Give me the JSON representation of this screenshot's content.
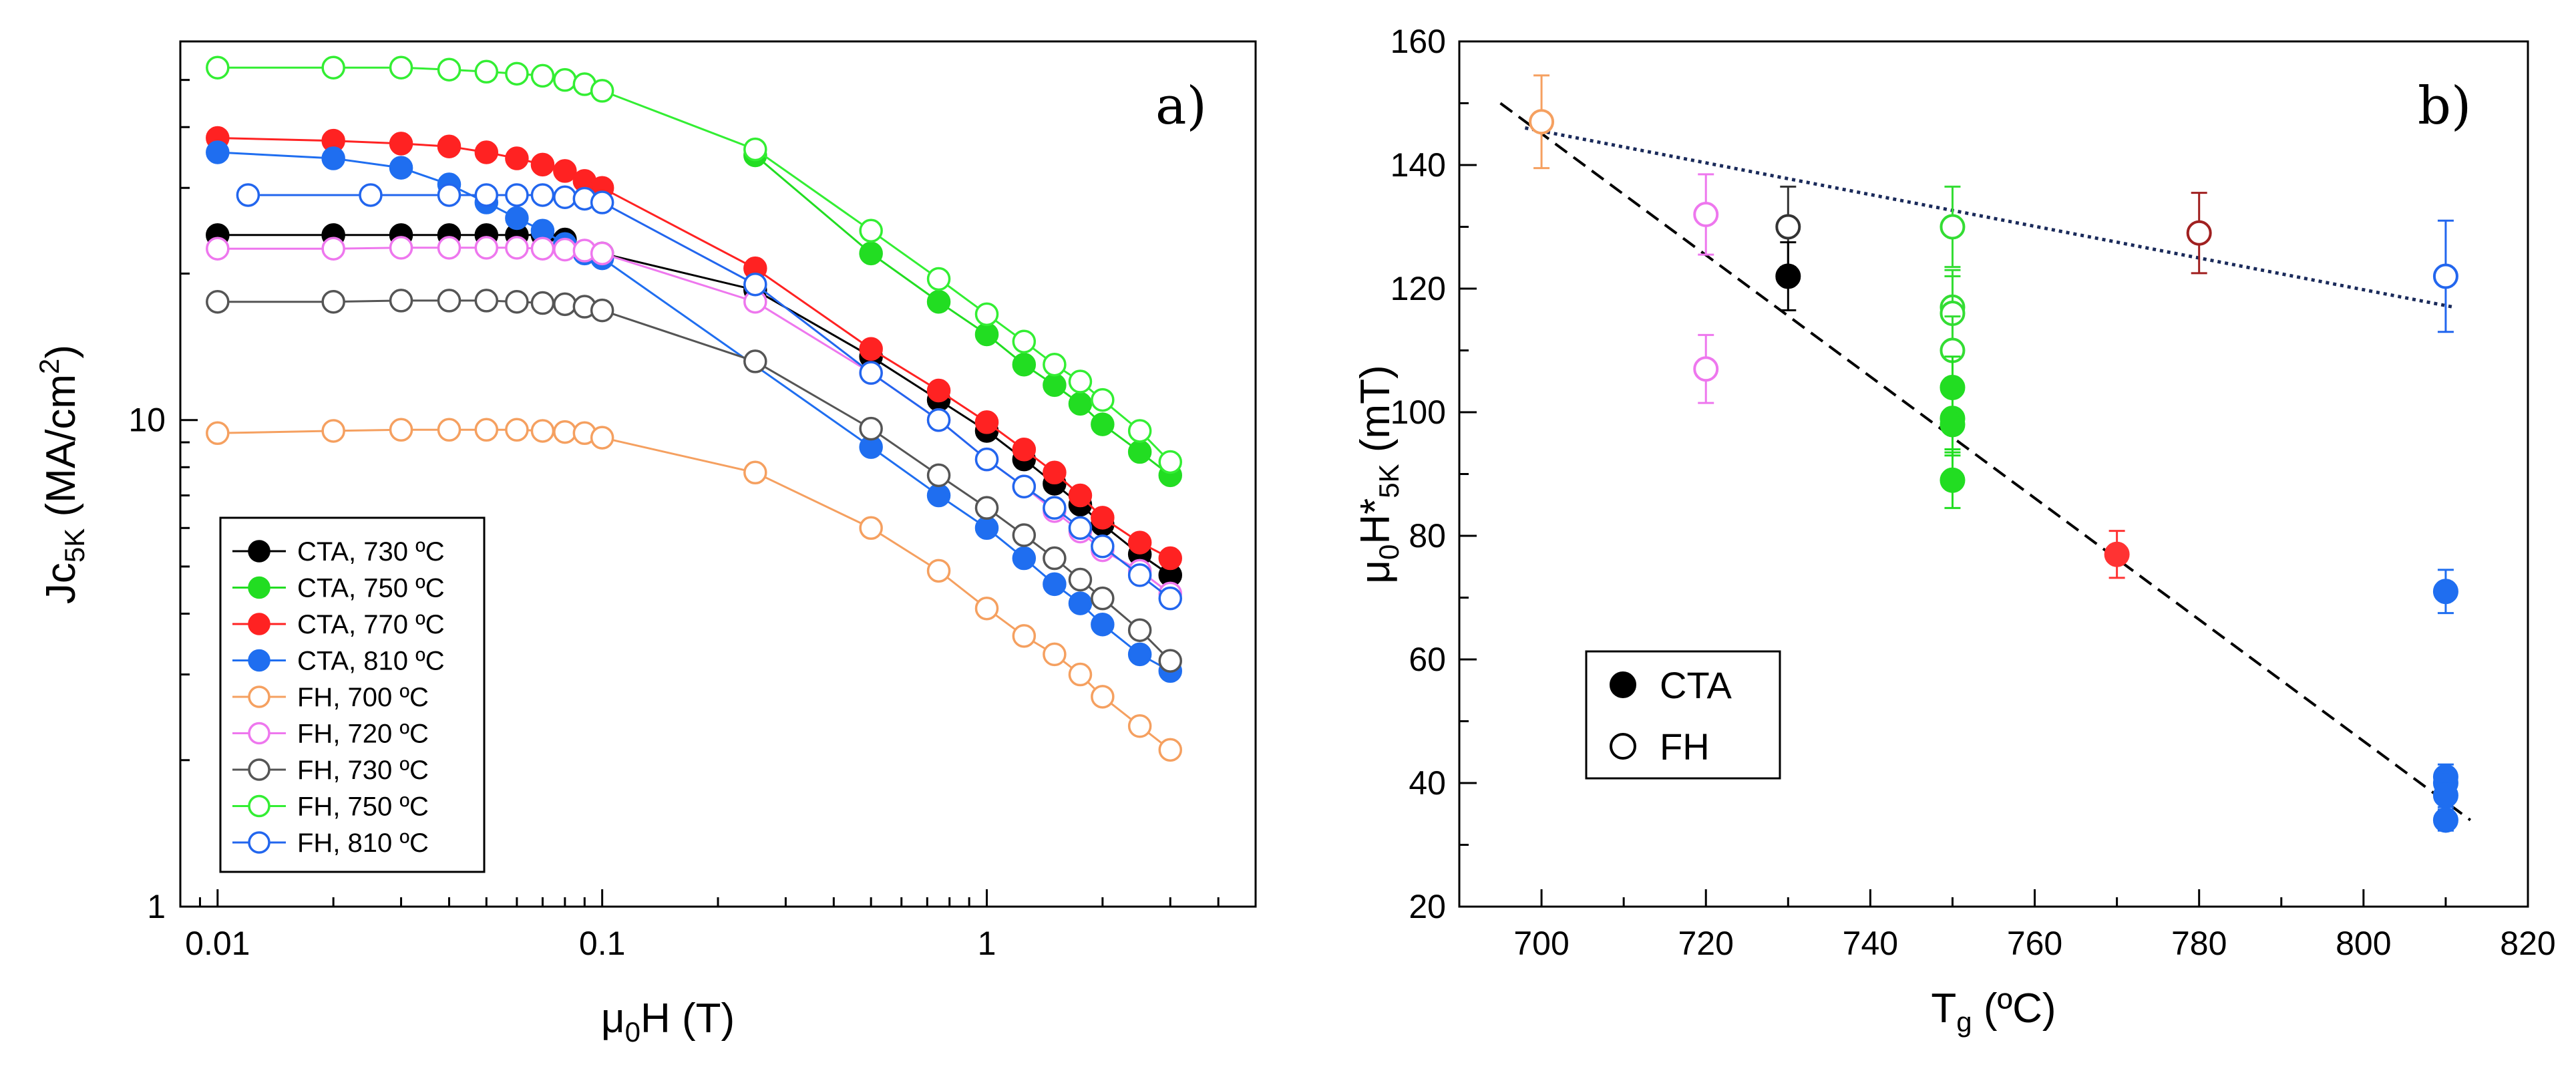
{
  "chart_data": [
    {
      "panel": "a)",
      "type": "line",
      "scale": "log-log",
      "xlabel": "μ0H (T)",
      "ylabel": "Jc5K (MA/cm2)",
      "xlim": [
        0.008,
        5
      ],
      "ylim": [
        1,
        60
      ],
      "xticks": [
        0.01,
        0.1,
        1
      ],
      "xtick_labels": [
        "0.01",
        "0.1",
        "1"
      ],
      "yticks": [
        1,
        10
      ],
      "ytick_labels": [
        "1",
        "10"
      ],
      "legend": "bottom-left",
      "series": [
        {
          "name": "CTA, 730 ºC",
          "marker": "filled",
          "color": "#000000",
          "x": [
            0.01,
            0.02,
            0.03,
            0.04,
            0.05,
            0.06,
            0.07,
            0.08,
            0.1,
            0.25,
            0.5,
            0.75,
            1,
            1.25,
            1.5,
            1.75,
            2,
            2.5,
            3
          ],
          "y": [
            24,
            24,
            24,
            24,
            24,
            24,
            24,
            23.5,
            22,
            18.5,
            13.5,
            11,
            9.5,
            8.3,
            7.4,
            6.7,
            6.1,
            5.3,
            4.8
          ]
        },
        {
          "name": "CTA, 750 ºC",
          "marker": "filled",
          "color": "#22dd22",
          "x": [
            0.25,
            0.5,
            0.75,
            1,
            1.25,
            1.5,
            1.75,
            2,
            2.5,
            3
          ],
          "y": [
            35,
            22,
            17.5,
            15,
            13,
            11.8,
            10.8,
            9.8,
            8.6,
            7.7
          ]
        },
        {
          "name": "CTA, 770 ºC",
          "marker": "filled",
          "color": "#ff2222",
          "x": [
            0.01,
            0.02,
            0.03,
            0.04,
            0.05,
            0.06,
            0.07,
            0.08,
            0.09,
            0.1,
            0.25,
            0.5,
            0.75,
            1,
            1.25,
            1.5,
            1.75,
            2,
            2.5,
            3
          ],
          "y": [
            38,
            37.5,
            37,
            36.5,
            35.5,
            34.5,
            33.5,
            32.5,
            31,
            30,
            20.5,
            14,
            11.5,
            9.9,
            8.7,
            7.8,
            7,
            6.3,
            5.6,
            5.2
          ]
        },
        {
          "name": "CTA, 810 ºC",
          "marker": "filled",
          "color": "#1f6ef0",
          "x": [
            0.01,
            0.02,
            0.03,
            0.04,
            0.05,
            0.06,
            0.07,
            0.08,
            0.09,
            0.1,
            0.5,
            0.75,
            1,
            1.25,
            1.5,
            1.75,
            2,
            2.5,
            3
          ],
          "y": [
            35.5,
            34.5,
            33,
            30.5,
            28,
            26,
            24.5,
            23,
            22,
            21.5,
            8.8,
            7,
            6,
            5.2,
            4.6,
            4.2,
            3.8,
            3.3,
            3.05
          ]
        },
        {
          "name": "FH, 700 ºC",
          "marker": "open",
          "color": "#f5a060",
          "x": [
            0.01,
            0.02,
            0.03,
            0.04,
            0.05,
            0.06,
            0.07,
            0.08,
            0.09,
            0.1,
            0.25,
            0.5,
            0.75,
            1,
            1.25,
            1.5,
            1.75,
            2,
            2.5,
            3
          ],
          "y": [
            9.4,
            9.5,
            9.55,
            9.55,
            9.55,
            9.55,
            9.5,
            9.45,
            9.4,
            9.2,
            7.8,
            6,
            4.9,
            4.1,
            3.6,
            3.3,
            3,
            2.7,
            2.35,
            2.1
          ]
        },
        {
          "name": "FH, 720 ºC",
          "marker": "open",
          "color": "#ee77ee",
          "x": [
            0.01,
            0.02,
            0.03,
            0.04,
            0.05,
            0.06,
            0.07,
            0.08,
            0.09,
            0.1,
            0.25,
            0.5,
            0.75,
            1,
            1.25,
            1.5,
            1.75,
            2,
            2.5,
            3
          ],
          "y": [
            22.5,
            22.5,
            22.6,
            22.6,
            22.6,
            22.6,
            22.5,
            22.4,
            22.3,
            22,
            17.5,
            12.5,
            10,
            8.3,
            7.3,
            6.5,
            5.9,
            5.4,
            4.9,
            4.4
          ]
        },
        {
          "name": "FH, 730 ºC",
          "marker": "open",
          "color": "#555555",
          "x": [
            0.01,
            0.02,
            0.03,
            0.04,
            0.05,
            0.06,
            0.07,
            0.08,
            0.09,
            0.1,
            0.25,
            0.5,
            0.75,
            1,
            1.25,
            1.5,
            1.75,
            2,
            2.5,
            3
          ],
          "y": [
            17.5,
            17.5,
            17.6,
            17.6,
            17.6,
            17.5,
            17.4,
            17.3,
            17.1,
            16.8,
            13.2,
            9.6,
            7.7,
            6.6,
            5.8,
            5.2,
            4.7,
            4.3,
            3.7,
            3.2
          ]
        },
        {
          "name": "FH, 750 ºC",
          "marker": "open",
          "color": "#33ee33",
          "x": [
            0.01,
            0.02,
            0.03,
            0.04,
            0.05,
            0.06,
            0.07,
            0.08,
            0.09,
            0.1,
            0.25,
            0.5,
            0.75,
            1,
            1.25,
            1.5,
            1.75,
            2,
            2.5,
            3
          ],
          "y": [
            53,
            53,
            53,
            52.5,
            52,
            51.5,
            51,
            50,
            49,
            47.5,
            36,
            24.5,
            19.5,
            16.5,
            14.5,
            13,
            12,
            11,
            9.5,
            8.2
          ]
        },
        {
          "name": "FH, 810 ºC",
          "marker": "open",
          "color": "#2266ee",
          "x": [
            0.012,
            0.025,
            0.04,
            0.05,
            0.06,
            0.07,
            0.08,
            0.09,
            0.1,
            0.25,
            0.5,
            0.75,
            1,
            1.25,
            1.5,
            1.75,
            2,
            2.5,
            3
          ],
          "y": [
            29,
            29,
            29,
            29,
            29,
            29,
            28.7,
            28.5,
            28,
            19,
            12.5,
            10,
            8.3,
            7.3,
            6.6,
            6,
            5.5,
            4.8,
            4.3
          ]
        }
      ]
    },
    {
      "panel": "b)",
      "type": "scatter",
      "xlabel": "Tg (ºC)",
      "ylabel": "μ0H*5K (mT)",
      "xlim": [
        690,
        820
      ],
      "ylim": [
        20,
        160
      ],
      "xticks": [
        700,
        720,
        740,
        760,
        780,
        800,
        820
      ],
      "yticks": [
        20,
        40,
        60,
        80,
        100,
        120,
        140,
        160
      ],
      "legend": "bottom-left",
      "legend_entries": [
        {
          "label": "CTA",
          "marker": "filled",
          "color": "#000000"
        },
        {
          "label": "FH",
          "marker": "open",
          "color": "#000000"
        }
      ],
      "points": [
        {
          "x": 700,
          "y": 147,
          "marker": "open",
          "color": "#f5a060",
          "err": 7.5
        },
        {
          "x": 720,
          "y": 132,
          "marker": "open",
          "color": "#ee77ee",
          "err": 6.5
        },
        {
          "x": 720,
          "y": 107,
          "marker": "open",
          "color": "#ee77ee",
          "err": 5.5
        },
        {
          "x": 730,
          "y": 130,
          "marker": "open",
          "color": "#333333",
          "err": 6.5
        },
        {
          "x": 730,
          "y": 122,
          "marker": "filled",
          "color": "#000000",
          "err": 5.5
        },
        {
          "x": 750,
          "y": 130,
          "marker": "open",
          "color": "#33dd33",
          "err": 6.5
        },
        {
          "x": 750,
          "y": 117,
          "marker": "open",
          "color": "#33dd33",
          "err": 6
        },
        {
          "x": 750,
          "y": 116,
          "marker": "open",
          "color": "#33dd33",
          "err": 6
        },
        {
          "x": 750,
          "y": 110,
          "marker": "open",
          "color": "#33dd33",
          "err": 5.5
        },
        {
          "x": 750,
          "y": 104,
          "marker": "filled",
          "color": "#22dd22",
          "err": 5
        },
        {
          "x": 750,
          "y": 99,
          "marker": "filled",
          "color": "#22dd22",
          "err": 5
        },
        {
          "x": 750,
          "y": 98,
          "marker": "filled",
          "color": "#22dd22",
          "err": 5
        },
        {
          "x": 750,
          "y": 89,
          "marker": "filled",
          "color": "#22dd22",
          "err": 4.5
        },
        {
          "x": 770,
          "y": 77,
          "marker": "filled",
          "color": "#ff3333",
          "err": 3.8
        },
        {
          "x": 780,
          "y": 129,
          "marker": "open",
          "color": "#a02020",
          "err": 6.5
        },
        {
          "x": 810,
          "y": 122,
          "marker": "open",
          "color": "#2266ee",
          "err": 9
        },
        {
          "x": 810,
          "y": 71,
          "marker": "filled",
          "color": "#1f6ef0",
          "err": 3.5
        },
        {
          "x": 810,
          "y": 41,
          "marker": "filled",
          "color": "#1f6ef0",
          "err": 2
        },
        {
          "x": 810,
          "y": 40,
          "marker": "filled",
          "color": "#1f6ef0",
          "err": 2
        },
        {
          "x": 810,
          "y": 38,
          "marker": "filled",
          "color": "#1f6ef0",
          "err": 1.9
        },
        {
          "x": 810,
          "y": 34,
          "marker": "filled",
          "color": "#1f6ef0",
          "err": 1.7
        }
      ],
      "fit_lines": [
        {
          "name": "CTA fit",
          "style": "dashed",
          "x": [
            695,
            813
          ],
          "y": [
            150,
            34
          ]
        },
        {
          "name": "FH fit",
          "style": "dotted",
          "color": "#1a2a5a",
          "x": [
            698,
            811
          ],
          "y": [
            146,
            117
          ]
        }
      ]
    }
  ]
}
